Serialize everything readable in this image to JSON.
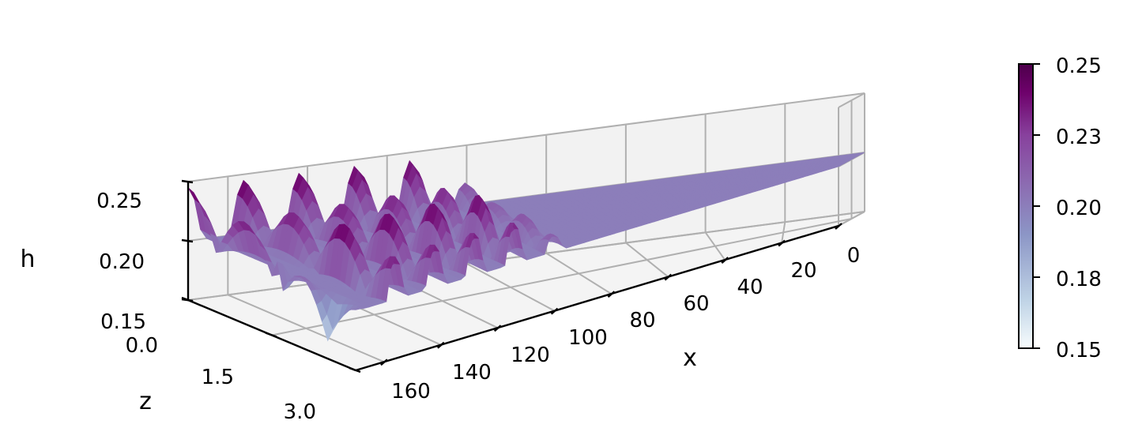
{
  "chart_data": {
    "type": "surface",
    "xlabel": "x",
    "ylabel": "z",
    "zlabel": "h",
    "xlim": [
      0,
      170
    ],
    "ylim": [
      0,
      3.0
    ],
    "zlim": [
      0.15,
      0.25
    ],
    "x_ticks": [
      "0",
      "20",
      "40",
      "60",
      "80",
      "100",
      "120",
      "140",
      "160"
    ],
    "y_ticks": [
      "0.0",
      "1.5",
      "3.0"
    ],
    "z_ticks": [
      "0.15",
      "0.20",
      "0.25"
    ],
    "colorbar": {
      "ticks": [
        "0.15",
        "0.18",
        "0.20",
        "0.23",
        "0.25"
      ],
      "range": [
        0.15,
        0.25
      ],
      "colormap": [
        "#f7fcfd",
        "#bfd3e6",
        "#8c96c6",
        "#8c6bb1",
        "#88419d",
        "#6e016b",
        "#4d004b"
      ]
    },
    "surface": {
      "baseline_h": 0.2,
      "description_free_model": {
        "modes_in_z": 3,
        "peak_h": 0.25,
        "trough_h": 0.16,
        "crest_count": 8,
        "wavelength_x": 14,
        "wave_region_x": [
          90,
          170
        ]
      }
    },
    "grid": true,
    "pane_color": "#f2f2f2"
  }
}
